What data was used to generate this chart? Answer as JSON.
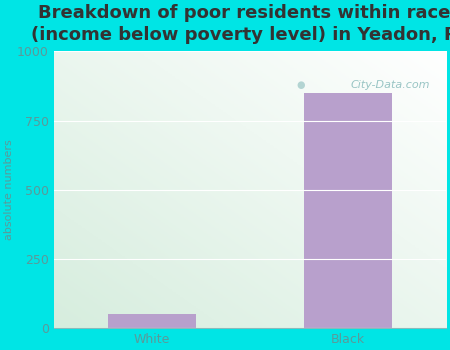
{
  "title": "Breakdown of poor residents within races\n(income below poverty level) in Yeadon, PA",
  "categories": [
    "White",
    "Black"
  ],
  "values": [
    50,
    850
  ],
  "bar_color": "#b8a0cc",
  "ylabel": "absolute numbers",
  "ylim": [
    0,
    1000
  ],
  "yticks": [
    0,
    250,
    500,
    750,
    1000
  ],
  "background_outer": "#00e5e5",
  "title_fontsize": 13,
  "axis_label_fontsize": 8,
  "tick_fontsize": 9,
  "watermark": "City-Data.com",
  "tick_color": "#5a9a9a",
  "title_color": "#333333"
}
